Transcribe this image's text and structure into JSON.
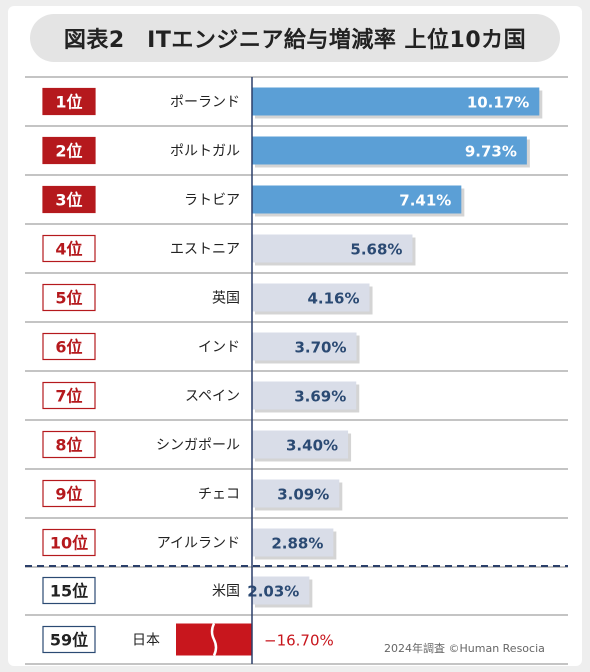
{
  "colors": {
    "top3_rank_bg": "#b5191d",
    "top3_bar": "#5b9fd6",
    "other_bar": "#d9dde8",
    "other_value_text": "#2b4a73",
    "highlight_rank_border": "#2b4a73",
    "japan_bar": "#c8161d",
    "negative_value_text": "#c8161d",
    "axis_line": "#2b3f6a"
  },
  "chart_data": {
    "type": "bar",
    "orientation": "horizontal",
    "title": "図表2　ITエンジニア給与増減率 上位10カ国",
    "unit": "%",
    "footnote": "2024年調査 ©Human Resocia",
    "rows": [
      {
        "rank": "1位",
        "country": "ポーランド",
        "value": 10.17,
        "value_label": "10.17%",
        "group": "top3"
      },
      {
        "rank": "2位",
        "country": "ポルトガル",
        "value": 9.73,
        "value_label": "9.73%",
        "group": "top3"
      },
      {
        "rank": "3位",
        "country": "ラトビア",
        "value": 7.41,
        "value_label": "7.41%",
        "group": "top3"
      },
      {
        "rank": "4位",
        "country": "エストニア",
        "value": 5.68,
        "value_label": "5.68%",
        "group": "top10"
      },
      {
        "rank": "5位",
        "country": "英国",
        "value": 4.16,
        "value_label": "4.16%",
        "group": "top10"
      },
      {
        "rank": "6位",
        "country": "インド",
        "value": 3.7,
        "value_label": "3.70%",
        "group": "top10"
      },
      {
        "rank": "7位",
        "country": "スペイン",
        "value": 3.69,
        "value_label": "3.69%",
        "group": "top10"
      },
      {
        "rank": "8位",
        "country": "シンガポール",
        "value": 3.4,
        "value_label": "3.40%",
        "group": "top10"
      },
      {
        "rank": "9位",
        "country": "チェコ",
        "value": 3.09,
        "value_label": "3.09%",
        "group": "top10"
      },
      {
        "rank": "10位",
        "country": "アイルランド",
        "value": 2.88,
        "value_label": "2.88%",
        "group": "top10"
      },
      {
        "rank": "15位",
        "country": "米国",
        "value": 2.03,
        "value_label": "2.03%",
        "group": "reference"
      },
      {
        "rank": "59位",
        "country": "日本",
        "value": -16.7,
        "value_label": "−16.70%",
        "group": "japan",
        "axis_break": true
      }
    ]
  }
}
